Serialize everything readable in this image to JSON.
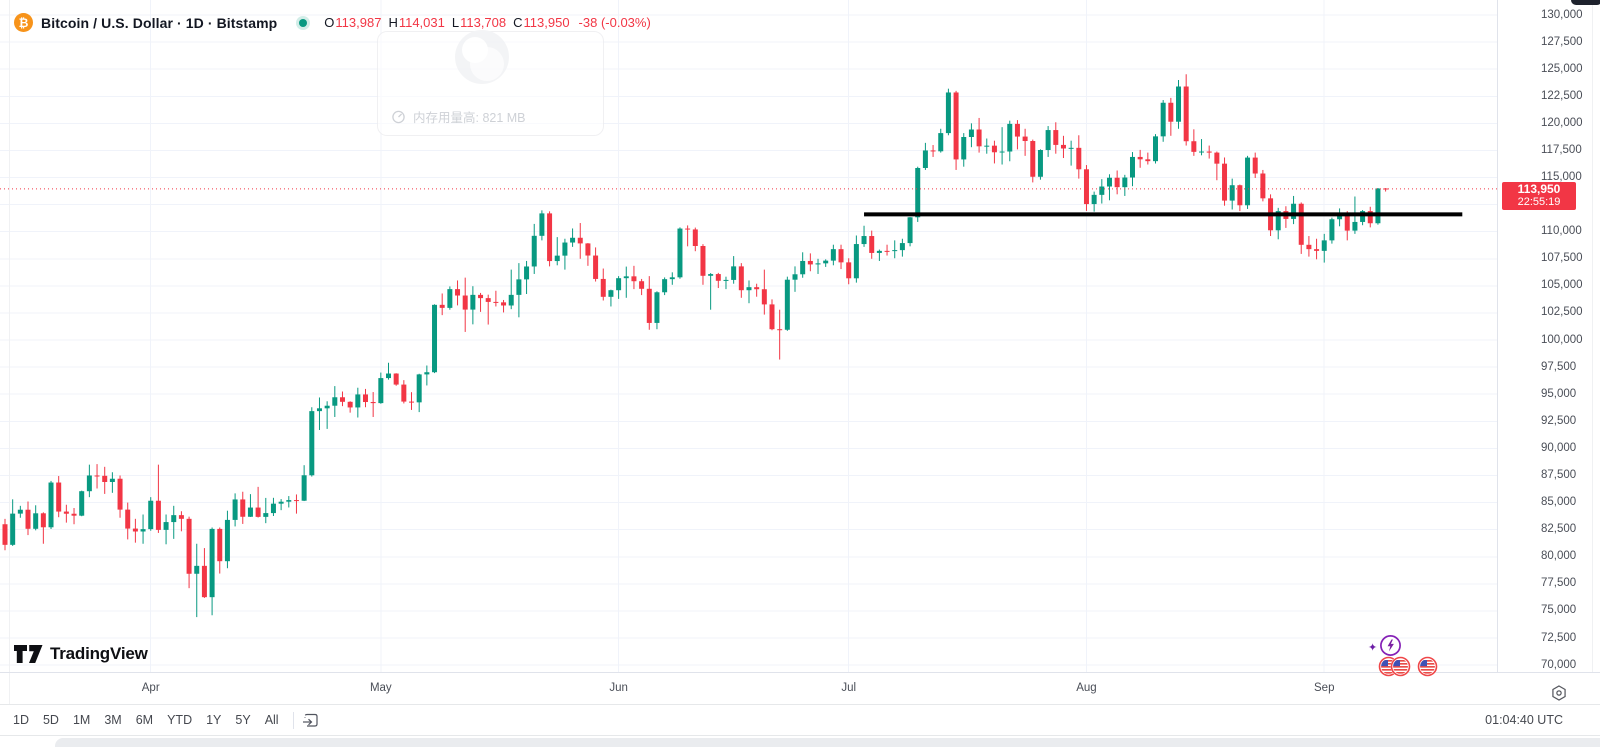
{
  "header": {
    "title": "Bitcoin / U.S. Dollar · 1D · Bitstamp",
    "market_status": "open",
    "ohlc": {
      "o_label": "O",
      "o": "113,987",
      "h_label": "H",
      "h": "114,031",
      "l_label": "L",
      "l": "113,708",
      "c_label": "C",
      "c": "113,950",
      "change": "-38 (-0.03%)"
    }
  },
  "toast": {
    "icon": "gauge-icon",
    "text": "内存用量高: 821 MB"
  },
  "price_tag": {
    "price": "113,950",
    "value": 113950,
    "countdown": "22:55:19",
    "color": "#f23645"
  },
  "price_axis": {
    "ticks": [
      {
        "label": "130,000",
        "value": 130000
      },
      {
        "label": "127,500",
        "value": 127500
      },
      {
        "label": "125,000",
        "value": 125000
      },
      {
        "label": "122,500",
        "value": 122500
      },
      {
        "label": "120,000",
        "value": 120000
      },
      {
        "label": "117,500",
        "value": 117500
      },
      {
        "label": "115,000",
        "value": 115000
      },
      {
        "label": "110,000",
        "value": 110000
      },
      {
        "label": "107,500",
        "value": 107500
      },
      {
        "label": "105,000",
        "value": 105000
      },
      {
        "label": "102,500",
        "value": 102500
      },
      {
        "label": "100,000",
        "value": 100000
      },
      {
        "label": "97,500",
        "value": 97500
      },
      {
        "label": "95,000",
        "value": 95000
      },
      {
        "label": "92,500",
        "value": 92500
      },
      {
        "label": "90,000",
        "value": 90000
      },
      {
        "label": "87,500",
        "value": 87500
      },
      {
        "label": "85,000",
        "value": 85000
      },
      {
        "label": "82,500",
        "value": 82500
      },
      {
        "label": "80,000",
        "value": 80000
      },
      {
        "label": "77,500",
        "value": 77500
      },
      {
        "label": "75,000",
        "value": 75000
      },
      {
        "label": "72,500",
        "value": 72500
      },
      {
        "label": "70,000",
        "value": 70000
      }
    ]
  },
  "time_axis": {
    "months": [
      "Apr",
      "May",
      "Jun",
      "Jul",
      "Aug",
      "Sep"
    ]
  },
  "toolbar": {
    "ranges": [
      "1D",
      "5D",
      "1M",
      "3M",
      "6M",
      "YTD",
      "1Y",
      "5Y",
      "All"
    ],
    "goto_icon": "calendar-goto-icon",
    "clock": "01:04:40 UTC"
  },
  "logo": {
    "text": "TradingView"
  },
  "widgets": {
    "ai_icon": "spark-lightning-icon",
    "flag_icons": [
      "us-flag",
      "us-flag",
      "us-flag"
    ]
  },
  "chart_data": {
    "type": "candlestick",
    "symbol": "Bitcoin / U.S. Dollar",
    "exchange": "Bitstamp",
    "interval": "1D",
    "start_date": "2025-03-13",
    "end_date": "2025-09-09",
    "x_axis_months": [
      "Apr",
      "May",
      "Jun",
      "Jul",
      "Aug",
      "Sep"
    ],
    "month_tick_indices": [
      19,
      49,
      80,
      110,
      141,
      172
    ],
    "y_axis": {
      "min": 70000,
      "max": 130000,
      "tick_step": 2500,
      "grid": true
    },
    "colors": {
      "up": "#089981",
      "down": "#f23645",
      "grid": "#f0f3fa"
    },
    "price_line": {
      "price": 113950,
      "color": "#f23645",
      "style": "dotted"
    },
    "horizontal_line": {
      "price": 111600,
      "color": "#000000",
      "width": 4,
      "from_date": "2025-07-03",
      "to_date": "2025-09-19"
    },
    "candles": [
      [
        83000,
        83500,
        80600,
        81100
      ],
      [
        81100,
        85300,
        81000,
        83980
      ],
      [
        83980,
        84700,
        83600,
        84340
      ],
      [
        84340,
        85100,
        82000,
        82580
      ],
      [
        82580,
        84750,
        82440,
        84010
      ],
      [
        84010,
        84100,
        81200,
        82720
      ],
      [
        82720,
        87000,
        82560,
        86850
      ],
      [
        86850,
        87450,
        83650,
        84170
      ],
      [
        84170,
        84800,
        83150,
        83970
      ],
      [
        83970,
        84500,
        83000,
        83790
      ],
      [
        83790,
        86100,
        83740,
        86050
      ],
      [
        86050,
        88500,
        85500,
        87500
      ],
      [
        87500,
        88550,
        86300,
        87470
      ],
      [
        87470,
        88300,
        85800,
        86900
      ],
      [
        86900,
        87800,
        85900,
        87200
      ],
      [
        87200,
        87500,
        83600,
        84350
      ],
      [
        84350,
        85000,
        81600,
        82600
      ],
      [
        82600,
        83500,
        81300,
        82330
      ],
      [
        82330,
        83900,
        81200,
        82550
      ],
      [
        82550,
        85500,
        82400,
        85170
      ],
      [
        85170,
        88500,
        82200,
        82480
      ],
      [
        82480,
        83900,
        81150,
        83200
      ],
      [
        83200,
        84700,
        81650,
        83840
      ],
      [
        83840,
        84200,
        82350,
        83500
      ],
      [
        83500,
        83700,
        77100,
        78430
      ],
      [
        78430,
        81200,
        74430,
        79160
      ],
      [
        79160,
        80800,
        76200,
        76270
      ],
      [
        76270,
        82700,
        74600,
        82570
      ],
      [
        82570,
        82700,
        78450,
        79590
      ],
      [
        79590,
        84250,
        78940,
        83400
      ],
      [
        83400,
        85850,
        82800,
        85290
      ],
      [
        85290,
        86000,
        83030,
        83690
      ],
      [
        83690,
        85780,
        83670,
        84540
      ],
      [
        84540,
        86450,
        83620,
        83680
      ],
      [
        83680,
        85430,
        83100,
        84030
      ],
      [
        84030,
        85440,
        83760,
        84900
      ],
      [
        84900,
        85320,
        84300,
        85080
      ],
      [
        85080,
        85600,
        84550,
        85230
      ],
      [
        85230,
        85750,
        83980,
        85170
      ],
      [
        85170,
        88450,
        85140,
        87520
      ],
      [
        87520,
        93800,
        87400,
        93440
      ],
      [
        93440,
        94700,
        91700,
        93700
      ],
      [
        93700,
        94350,
        91800,
        93940
      ],
      [
        93940,
        95750,
        92900,
        94720
      ],
      [
        94720,
        95250,
        93900,
        94300
      ],
      [
        94300,
        94350,
        93300,
        93780
      ],
      [
        93780,
        95600,
        92850,
        94980
      ],
      [
        94980,
        95490,
        93800,
        94280
      ],
      [
        94280,
        95200,
        92900,
        94180
      ],
      [
        94180,
        97000,
        94120,
        96490
      ],
      [
        96490,
        97900,
        96350,
        96910
      ],
      [
        96910,
        96940,
        95780,
        95890
      ],
      [
        95890,
        96300,
        94150,
        94320
      ],
      [
        94320,
        95190,
        93550,
        94250
      ],
      [
        94250,
        96890,
        93350,
        96830
      ],
      [
        96830,
        97650,
        95810,
        97030
      ],
      [
        97030,
        103300,
        96950,
        103250
      ],
      [
        103250,
        104300,
        102300,
        102970
      ],
      [
        102970,
        104950,
        102800,
        104700
      ],
      [
        104700,
        105500,
        103200,
        104110
      ],
      [
        104110,
        105760,
        100750,
        102810
      ],
      [
        102810,
        104970,
        101450,
        104170
      ],
      [
        104170,
        104350,
        102600,
        103870
      ],
      [
        103870,
        104190,
        101430,
        103520
      ],
      [
        103520,
        104550,
        103100,
        103480
      ],
      [
        103480,
        103700,
        102550,
        103190
      ],
      [
        103190,
        106500,
        102850,
        104170
      ],
      [
        104170,
        107100,
        102100,
        105600
      ],
      [
        105600,
        107300,
        104250,
        106790
      ],
      [
        106790,
        110720,
        106100,
        109620
      ],
      [
        109620,
        111970,
        109200,
        111690
      ],
      [
        111690,
        111880,
        106800,
        107290
      ],
      [
        107290,
        109500,
        106900,
        107790
      ],
      [
        107790,
        109350,
        106500,
        109000
      ],
      [
        109000,
        110300,
        108600,
        109440
      ],
      [
        109440,
        110800,
        107500,
        108920
      ],
      [
        108920,
        108950,
        106850,
        107800
      ],
      [
        107800,
        108550,
        105400,
        105640
      ],
      [
        105640,
        106600,
        103650,
        103990
      ],
      [
        103990,
        104650,
        103100,
        104600
      ],
      [
        104600,
        105900,
        103800,
        105710
      ],
      [
        105710,
        106780,
        103900,
        105880
      ],
      [
        105880,
        106850,
        104700,
        105430
      ],
      [
        105430,
        105640,
        104150,
        104730
      ],
      [
        104730,
        105900,
        100950,
        101580
      ],
      [
        101580,
        104500,
        101000,
        104410
      ],
      [
        104410,
        105780,
        104150,
        105620
      ],
      [
        105620,
        106250,
        105100,
        105790
      ],
      [
        105790,
        110400,
        105660,
        110290
      ],
      [
        110290,
        110580,
        108650,
        110210
      ],
      [
        110210,
        110380,
        108200,
        108680
      ],
      [
        108680,
        108850,
        105100,
        105930
      ],
      [
        105930,
        106180,
        102800,
        106090
      ],
      [
        106090,
        106200,
        104800,
        105470
      ],
      [
        105470,
        105850,
        104700,
        105550
      ],
      [
        105550,
        107750,
        105200,
        106800
      ],
      [
        106800,
        107100,
        103900,
        104600
      ],
      [
        104600,
        105500,
        103400,
        104880
      ],
      [
        104880,
        105200,
        104000,
        104690
      ],
      [
        104690,
        106500,
        102350,
        103290
      ],
      [
        103290,
        103750,
        100900,
        101000
      ],
      [
        101000,
        102800,
        98200,
        100950
      ],
      [
        100950,
        105850,
        100850,
        105570
      ],
      [
        105570,
        106800,
        104450,
        106070
      ],
      [
        106070,
        108100,
        105750,
        107300
      ],
      [
        107300,
        108000,
        106350,
        106980
      ],
      [
        106980,
        107500,
        106100,
        107080
      ],
      [
        107080,
        107450,
        106750,
        107330
      ],
      [
        107330,
        108800,
        106900,
        108390
      ],
      [
        108390,
        108800,
        106550,
        107170
      ],
      [
        107170,
        107550,
        105150,
        105700
      ],
      [
        105700,
        109650,
        105300,
        108860
      ],
      [
        108860,
        110550,
        108600,
        109600
      ],
      [
        109600,
        110100,
        107500,
        108040
      ],
      [
        108040,
        108350,
        107300,
        108230
      ],
      [
        108230,
        108800,
        107800,
        108220
      ],
      [
        108220,
        109200,
        107550,
        108300
      ],
      [
        108300,
        109350,
        107700,
        108950
      ],
      [
        108950,
        111350,
        108650,
        111330
      ],
      [
        111330,
        116000,
        110900,
        115880
      ],
      [
        115880,
        118200,
        115700,
        117500
      ],
      [
        117500,
        118000,
        116900,
        117420
      ],
      [
        117420,
        119500,
        117300,
        119100
      ],
      [
        119100,
        123200,
        118900,
        122850
      ],
      [
        122850,
        123000,
        115700,
        116670
      ],
      [
        116670,
        119100,
        116000,
        118740
      ],
      [
        118740,
        120000,
        117800,
        119430
      ],
      [
        119430,
        120500,
        117300,
        117880
      ],
      [
        117880,
        118600,
        117200,
        117940
      ],
      [
        117940,
        118400,
        116300,
        117330
      ],
      [
        117330,
        119650,
        116200,
        117400
      ],
      [
        117400,
        120250,
        116500,
        119950
      ],
      [
        119950,
        120300,
        117600,
        118780
      ],
      [
        118780,
        119500,
        117000,
        118370
      ],
      [
        118370,
        118500,
        114550,
        115070
      ],
      [
        115070,
        117600,
        114800,
        117540
      ],
      [
        117540,
        119750,
        116900,
        119380
      ],
      [
        119380,
        120100,
        117200,
        118010
      ],
      [
        118010,
        118850,
        116800,
        117680
      ],
      [
        117680,
        118400,
        116100,
        117740
      ],
      [
        117740,
        118900,
        114900,
        115760
      ],
      [
        115760,
        116150,
        111920,
        112550
      ],
      [
        112550,
        113700,
        111850,
        113400
      ],
      [
        113400,
        114850,
        112600,
        114170
      ],
      [
        114170,
        115300,
        112900,
        114980
      ],
      [
        114980,
        115650,
        113450,
        114110
      ],
      [
        114110,
        115250,
        113300,
        115000
      ],
      [
        115000,
        117350,
        114200,
        116900
      ],
      [
        116900,
        117550,
        115900,
        116680
      ],
      [
        116680,
        117300,
        116200,
        116510
      ],
      [
        116510,
        119000,
        116300,
        118800
      ],
      [
        118800,
        122150,
        118300,
        121900
      ],
      [
        121900,
        122350,
        118850,
        120150
      ],
      [
        120150,
        124000,
        119500,
        123400
      ],
      [
        123400,
        124530,
        117950,
        118350
      ],
      [
        118350,
        119450,
        117000,
        117370
      ],
      [
        117370,
        118550,
        117050,
        117400
      ],
      [
        117400,
        117950,
        116750,
        117300
      ],
      [
        117300,
        117400,
        114750,
        116280
      ],
      [
        116280,
        116850,
        112400,
        112870
      ],
      [
        112870,
        114900,
        112050,
        114290
      ],
      [
        114290,
        114350,
        111900,
        112440
      ],
      [
        112440,
        117000,
        112100,
        116840
      ],
      [
        116840,
        117300,
        114960,
        115370
      ],
      [
        115370,
        115700,
        112800,
        113080
      ],
      [
        113080,
        113450,
        109600,
        110130
      ],
      [
        110130,
        112200,
        109300,
        111900
      ],
      [
        111900,
        112350,
        110350,
        111180
      ],
      [
        111180,
        113300,
        110700,
        112580
      ],
      [
        112580,
        112700,
        107950,
        108790
      ],
      [
        108790,
        109600,
        107700,
        108390
      ],
      [
        108390,
        109350,
        107450,
        108230
      ],
      [
        108230,
        109800,
        107150,
        109200
      ],
      [
        109200,
        111300,
        108900,
        111150
      ],
      [
        111150,
        112150,
        110500,
        111600
      ],
      [
        111600,
        111900,
        109200,
        110100
      ],
      [
        110100,
        113250,
        109800,
        110900
      ],
      [
        110900,
        112000,
        110600,
        111900
      ],
      [
        111900,
        112300,
        110400,
        110780
      ],
      [
        110780,
        114030,
        110650,
        113990
      ],
      [
        113987,
        114031,
        113708,
        113950
      ]
    ]
  }
}
